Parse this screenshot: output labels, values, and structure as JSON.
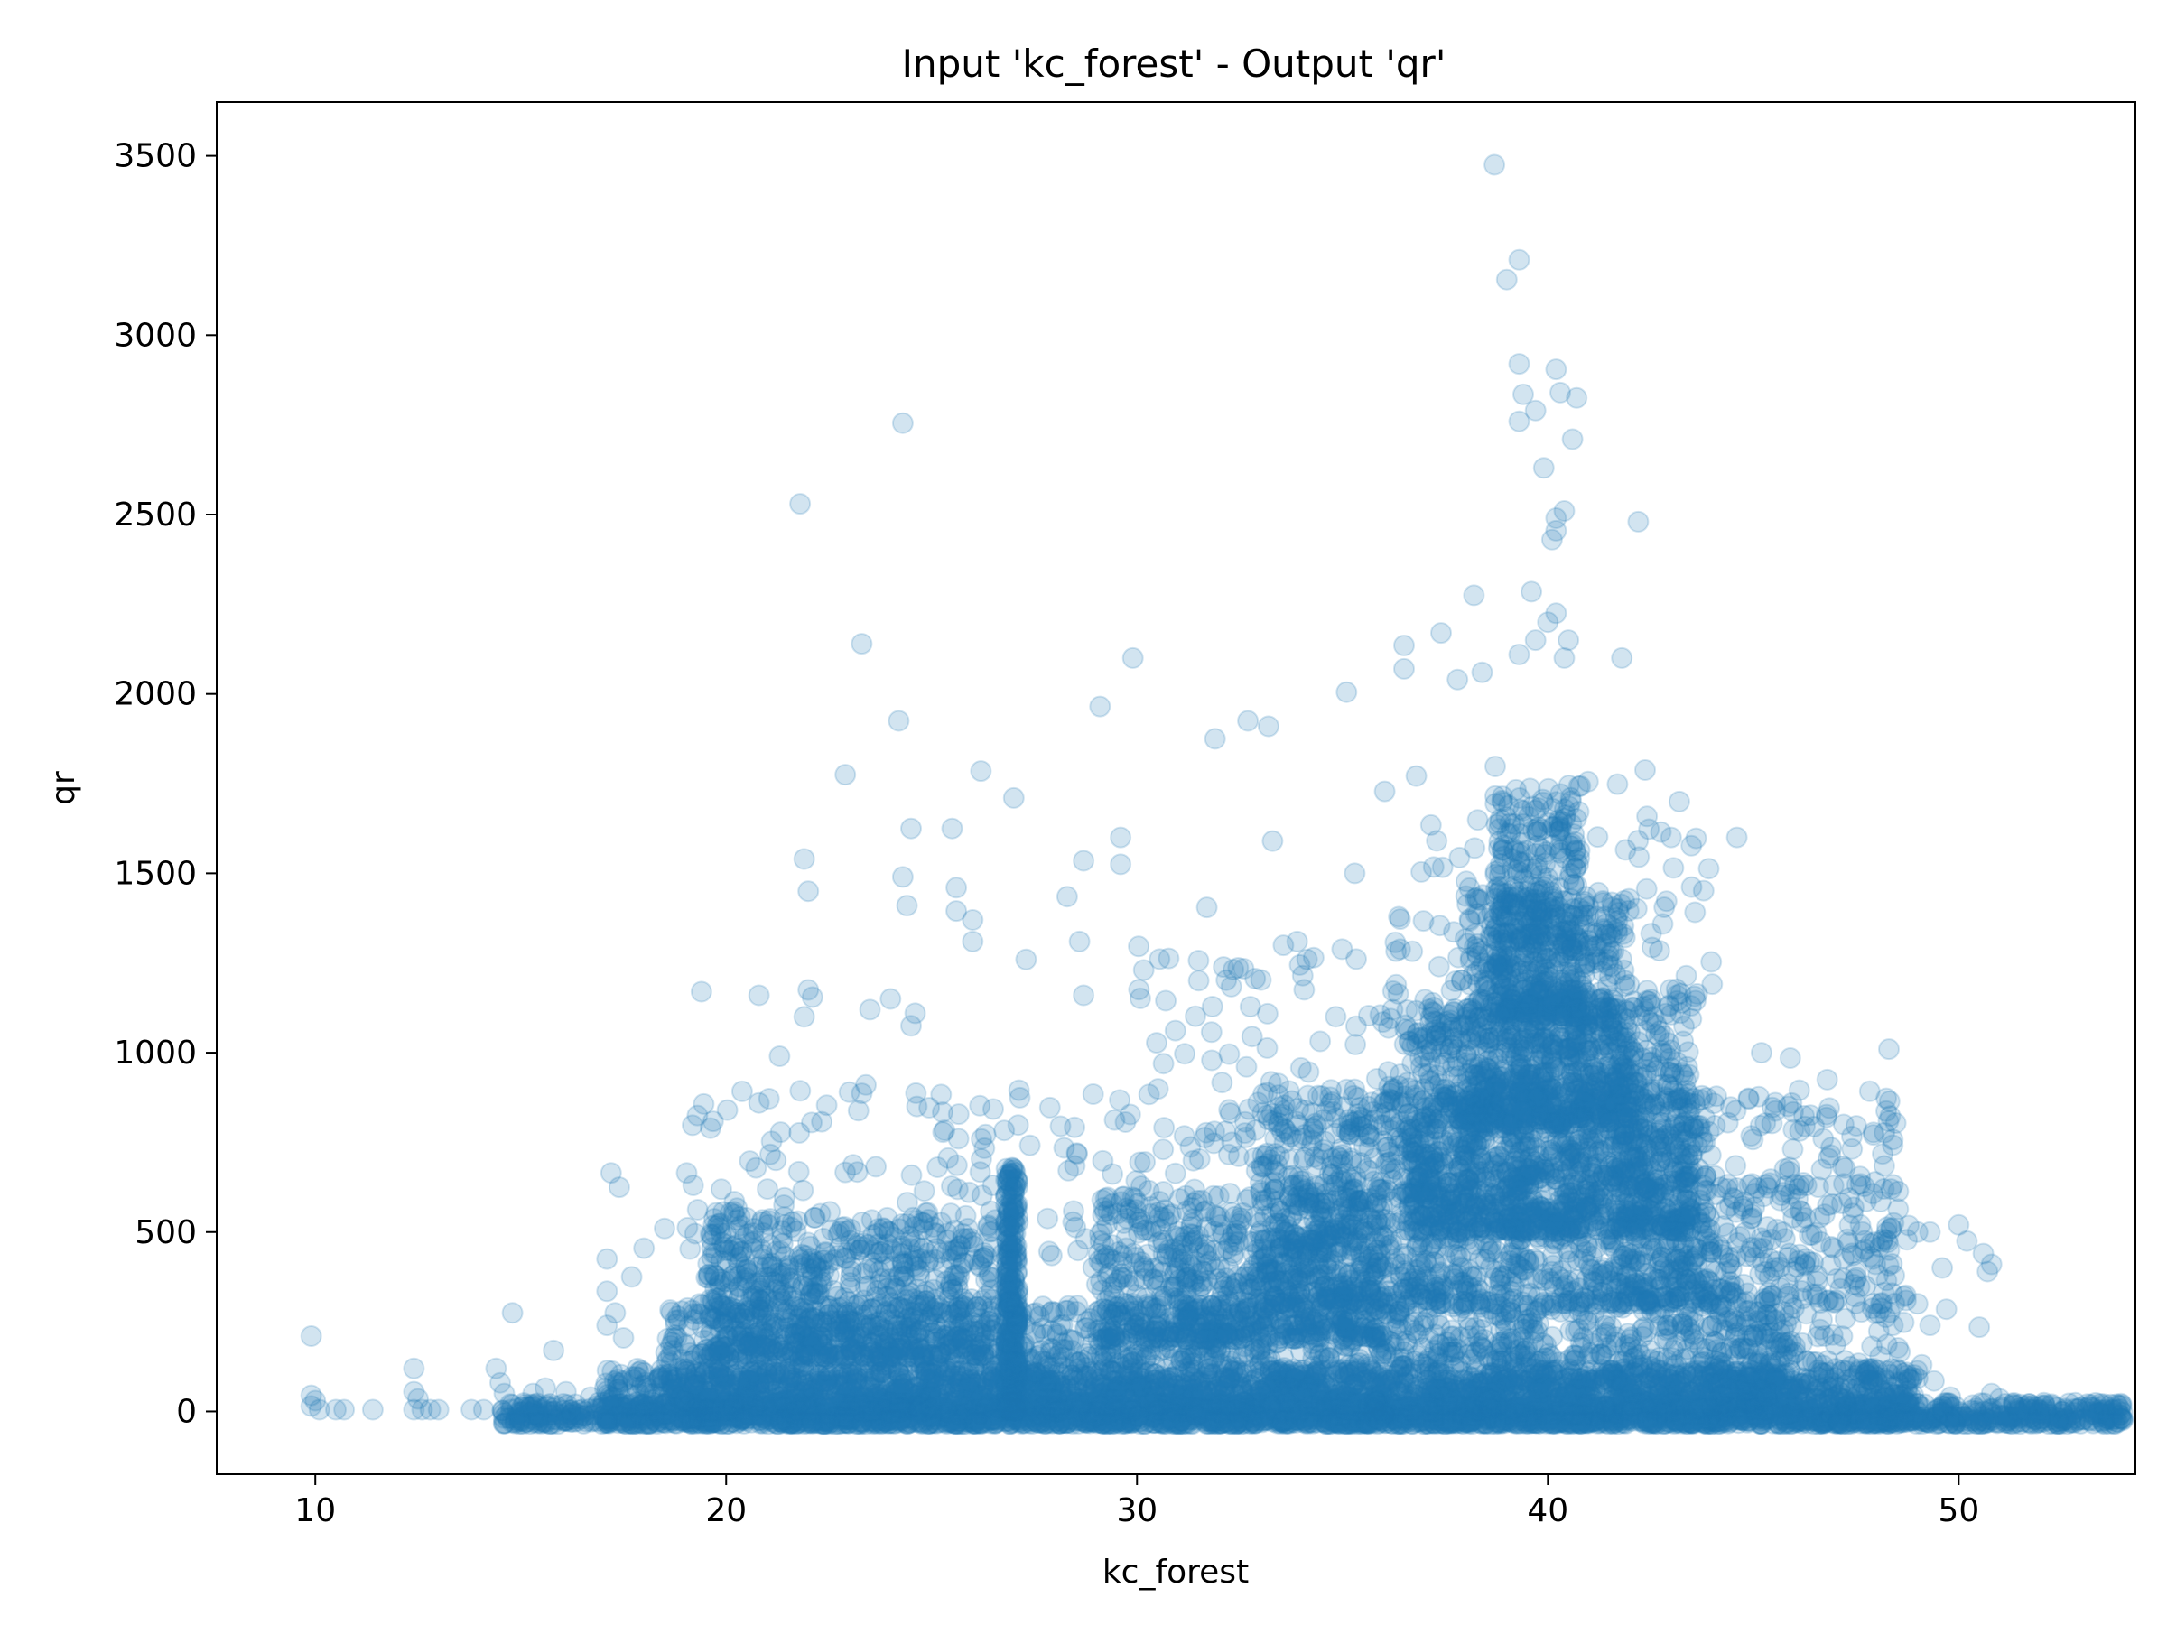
{
  "chart_data": {
    "type": "scatter",
    "title": "Input 'kc_forest' - Output 'qr'",
    "xlabel": "kc_forest",
    "ylabel": "qr",
    "xlim": [
      7.6,
      54.3
    ],
    "ylim": [
      -175,
      3650
    ],
    "xticks": [
      10,
      20,
      30,
      40,
      50
    ],
    "yticks": [
      0,
      500,
      1000,
      1500,
      2000,
      2500,
      3000,
      3500
    ],
    "grid": false,
    "legend": "none",
    "marker_color": "#1f77b4",
    "marker_alpha": 0.2,
    "series": [
      {
        "outliers": [
          [
            38.7,
            3475
          ],
          [
            39.3,
            3210
          ],
          [
            39.0,
            3155
          ],
          [
            39.3,
            2920
          ],
          [
            40.2,
            2905
          ],
          [
            39.4,
            2835
          ],
          [
            40.3,
            2840
          ],
          [
            40.7,
            2825
          ],
          [
            39.7,
            2790
          ],
          [
            39.3,
            2760
          ],
          [
            40.6,
            2710
          ],
          [
            39.9,
            2630
          ],
          [
            40.4,
            2510
          ],
          [
            40.2,
            2490
          ],
          [
            40.2,
            2455
          ],
          [
            40.1,
            2430
          ],
          [
            42.2,
            2480
          ],
          [
            24.3,
            2755
          ],
          [
            21.8,
            2530
          ],
          [
            23.3,
            2140
          ],
          [
            24.2,
            1925
          ],
          [
            29.9,
            2100
          ],
          [
            29.1,
            1965
          ],
          [
            32.7,
            1925
          ],
          [
            33.2,
            1910
          ],
          [
            31.9,
            1875
          ],
          [
            26.2,
            1785
          ],
          [
            27.0,
            1710
          ],
          [
            22.9,
            1775
          ],
          [
            35.1,
            2005
          ],
          [
            38.2,
            2275
          ],
          [
            39.6,
            2285
          ],
          [
            40.2,
            2225
          ],
          [
            40.0,
            2200
          ],
          [
            39.7,
            2150
          ],
          [
            40.5,
            2150
          ],
          [
            39.3,
            2110
          ],
          [
            40.4,
            2100
          ],
          [
            41.8,
            2100
          ],
          [
            36.5,
            2135
          ],
          [
            37.4,
            2170
          ],
          [
            37.8,
            2040
          ],
          [
            38.4,
            2060
          ],
          [
            36.5,
            2070
          ],
          [
            24.5,
            1625
          ],
          [
            25.5,
            1625
          ],
          [
            29.6,
            1600
          ],
          [
            33.3,
            1590
          ],
          [
            35.3,
            1500
          ],
          [
            43.0,
            1600
          ],
          [
            44.6,
            1600
          ],
          [
            43.2,
            1700
          ],
          [
            21.9,
            1540
          ],
          [
            22.0,
            1450
          ],
          [
            24.3,
            1490
          ],
          [
            24.4,
            1410
          ],
          [
            28.7,
            1535
          ],
          [
            29.6,
            1525
          ],
          [
            31.7,
            1405
          ],
          [
            25.6,
            1460
          ],
          [
            26.0,
            1370
          ],
          [
            25.6,
            1395
          ],
          [
            26.0,
            1310
          ],
          [
            28.3,
            1435
          ],
          [
            19.4,
            1170
          ],
          [
            20.8,
            1160
          ],
          [
            22.0,
            1175
          ],
          [
            22.1,
            1155
          ],
          [
            27.3,
            1260
          ],
          [
            28.6,
            1310
          ],
          [
            28.7,
            1160
          ],
          [
            30.7,
            1145
          ],
          [
            32.8,
            1045
          ],
          [
            34.3,
            1265
          ],
          [
            33.9,
            1310
          ],
          [
            19.3,
            825
          ],
          [
            20.8,
            860
          ],
          [
            23.0,
            890
          ],
          [
            23.4,
            910
          ],
          [
            24.5,
            1075
          ],
          [
            24.6,
            1110
          ],
          [
            21.3,
            990
          ],
          [
            21.9,
            1100
          ],
          [
            23.5,
            1120
          ],
          [
            24.0,
            1150
          ],
          [
            48.3,
            1010
          ],
          [
            47.2,
            800
          ],
          [
            46.8,
            925
          ],
          [
            45.9,
            985
          ],
          [
            45.2,
            1000
          ],
          [
            47.6,
            655
          ],
          [
            48.1,
            585
          ],
          [
            49.0,
            500
          ],
          [
            49.3,
            500
          ],
          [
            50.0,
            520
          ],
          [
            50.2,
            475
          ],
          [
            50.6,
            440
          ],
          [
            50.7,
            390
          ],
          [
            50.8,
            410
          ],
          [
            49.6,
            400
          ],
          [
            49.7,
            285
          ],
          [
            50.5,
            235
          ],
          [
            49.0,
            300
          ],
          [
            49.3,
            240
          ],
          [
            48.4,
            240
          ],
          [
            49.1,
            130
          ],
          [
            48.8,
            90
          ],
          [
            49.4,
            85
          ],
          [
            49.8,
            40
          ],
          [
            49.6,
            15
          ],
          [
            50.8,
            50
          ],
          [
            51.0,
            35
          ],
          [
            51.4,
            5
          ],
          [
            52.1,
            15
          ],
          [
            9.9,
            210
          ],
          [
            9.9,
            45
          ],
          [
            10.0,
            30
          ],
          [
            9.9,
            15
          ],
          [
            10.1,
            5
          ],
          [
            10.5,
            5
          ],
          [
            10.7,
            5
          ],
          [
            11.4,
            5
          ],
          [
            12.4,
            120
          ],
          [
            12.4,
            55
          ],
          [
            12.5,
            35
          ],
          [
            12.4,
            5
          ],
          [
            12.6,
            5
          ],
          [
            12.8,
            5
          ],
          [
            13.0,
            5
          ],
          [
            13.8,
            5
          ],
          [
            14.1,
            5
          ],
          [
            14.4,
            120
          ],
          [
            14.5,
            80
          ],
          [
            14.6,
            50
          ],
          [
            14.8,
            275
          ],
          [
            15.3,
            50
          ],
          [
            15.8,
            170
          ],
          [
            15.6,
            65
          ],
          [
            16.1,
            55
          ],
          [
            16.7,
            40
          ],
          [
            17.2,
            665
          ],
          [
            17.4,
            625
          ],
          [
            17.1,
            425
          ],
          [
            17.7,
            375
          ],
          [
            17.1,
            335
          ],
          [
            17.3,
            275
          ],
          [
            17.5,
            205
          ],
          [
            17.1,
            240
          ],
          [
            18.5,
            510
          ],
          [
            18.0,
            455
          ]
        ],
        "bands": [
          {
            "x": [
              14.5,
              54.0
            ],
            "y": [
              -35,
              25
            ],
            "n": 2200
          },
          {
            "x": [
              17.0,
              49.0
            ],
            "y": [
              -35,
              120
            ],
            "n": 2500
          },
          {
            "x": [
              18.5,
              46.0
            ],
            "y": [
              0,
              300
            ],
            "n": 2200
          },
          {
            "x": [
              19.5,
              26.5
            ],
            "y": [
              150,
              560
            ],
            "n": 700
          },
          {
            "x": [
              26.8,
              27.1
            ],
            "y": [
              0,
              680
            ],
            "n": 350
          },
          {
            "x": [
              29.0,
              36.0
            ],
            "y": [
              200,
              600
            ],
            "n": 700
          },
          {
            "x": [
              33.0,
              44.0
            ],
            "y": [
              300,
              900
            ],
            "n": 1400
          },
          {
            "x": [
              36.5,
              43.5
            ],
            "y": [
              500,
              1150
            ],
            "n": 1200
          },
          {
            "x": [
              38.0,
              42.0
            ],
            "y": [
              800,
              1450
            ],
            "n": 700
          },
          {
            "x": [
              38.7,
              40.8
            ],
            "y": [
              1100,
              1750
            ],
            "n": 350
          },
          {
            "x": [
              19.0,
              30.0
            ],
            "y": [
              400,
              900
            ],
            "n": 160
          },
          {
            "x": [
              30.0,
              38.0
            ],
            "y": [
              600,
              1300
            ],
            "n": 160
          },
          {
            "x": [
              41.5,
              48.5
            ],
            "y": [
              300,
              900
            ],
            "n": 260
          },
          {
            "x": [
              36.0,
              44.0
            ],
            "y": [
              1100,
              1800
            ],
            "n": 120
          },
          {
            "x": [
              44.0,
              48.8
            ],
            "y": [
              20,
              650
            ],
            "n": 260
          }
        ]
      }
    ]
  }
}
